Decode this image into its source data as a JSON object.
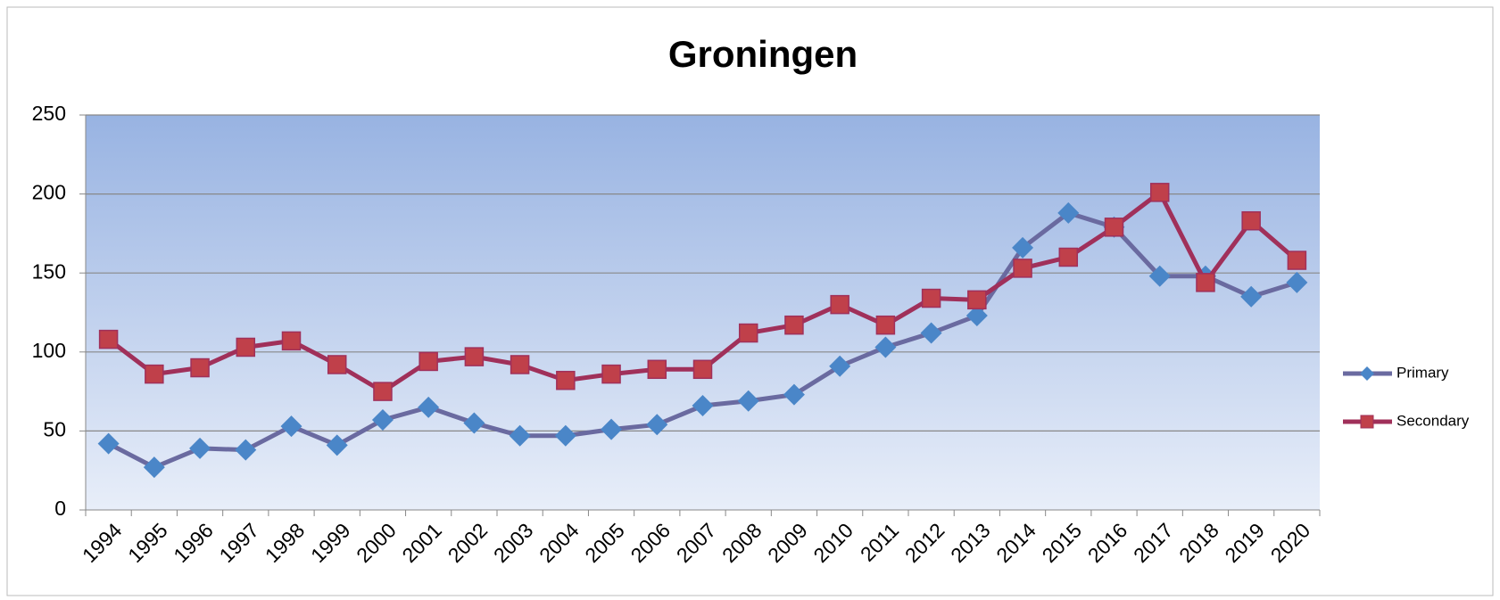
{
  "chart_data": {
    "type": "line",
    "title": "Groningen",
    "categories": [
      "1994",
      "1995",
      "1996",
      "1997",
      "1998",
      "1999",
      "2000",
      "2001",
      "2002",
      "2003",
      "2004",
      "2005",
      "2006",
      "2007",
      "2008",
      "2009",
      "2010",
      "2011",
      "2012",
      "2013",
      "2014",
      "2015",
      "2016",
      "2017",
      "2018",
      "2019",
      "2020"
    ],
    "series": [
      {
        "name": "Primary",
        "color": "#6a6aa0",
        "marker_color": "#4a86c8",
        "marker": "diamond",
        "values": [
          42,
          27,
          39,
          38,
          53,
          41,
          57,
          65,
          55,
          47,
          47,
          51,
          54,
          66,
          69,
          73,
          91,
          103,
          112,
          123,
          166,
          188,
          179,
          148,
          148,
          135,
          144
        ]
      },
      {
        "name": "Secondary",
        "color": "#a0305a",
        "marker_color": "#c0404a",
        "marker": "square",
        "values": [
          108,
          86,
          90,
          103,
          107,
          92,
          75,
          94,
          97,
          92,
          82,
          86,
          89,
          89,
          112,
          117,
          130,
          117,
          134,
          133,
          153,
          160,
          179,
          201,
          144,
          183,
          158
        ]
      }
    ],
    "ylim": [
      0,
      250
    ],
    "yticks": [
      0,
      50,
      100,
      150,
      200,
      250
    ],
    "grid": true,
    "legend": "right"
  }
}
